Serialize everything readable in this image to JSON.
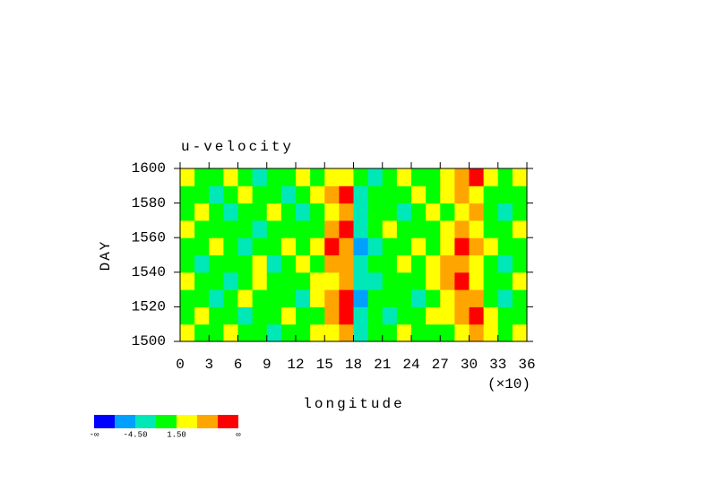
{
  "chart_data": {
    "type": "heatmap",
    "title": "u-velocity",
    "xlabel": "longitude",
    "ylabel": "DAY",
    "x_multiplier": "(×10)",
    "x": [
      0.75,
      2.25,
      3.75,
      5.25,
      6.75,
      8.25,
      9.75,
      11.25,
      12.75,
      14.25,
      15.75,
      17.25,
      18.75,
      20.25,
      21.75,
      23.25,
      24.75,
      26.25,
      27.75,
      29.25,
      30.75,
      32.25,
      33.75,
      35.25
    ],
    "y": [
      1505,
      1515,
      1525,
      1535,
      1545,
      1555,
      1565,
      1575,
      1585,
      1595
    ],
    "z": [
      [
        3,
        0,
        0,
        3,
        0,
        0,
        -3,
        0,
        0,
        3,
        3,
        6,
        -3,
        0,
        0,
        3,
        0,
        0,
        0,
        3,
        6,
        3,
        0,
        3
      ],
      [
        0,
        3,
        0,
        0,
        -3,
        0,
        0,
        3,
        0,
        0,
        6,
        9,
        -3,
        0,
        -3,
        0,
        0,
        3,
        3,
        6,
        9,
        3,
        0,
        0
      ],
      [
        0,
        0,
        -3,
        0,
        3,
        0,
        0,
        0,
        -3,
        3,
        6,
        9,
        -6,
        0,
        0,
        0,
        -3,
        0,
        3,
        6,
        6,
        0,
        -3,
        0
      ],
      [
        3,
        0,
        0,
        -3,
        0,
        3,
        0,
        0,
        0,
        3,
        3,
        6,
        -3,
        -3,
        0,
        0,
        0,
        3,
        6,
        9,
        3,
        0,
        0,
        3
      ],
      [
        0,
        -3,
        0,
        0,
        0,
        3,
        -3,
        0,
        3,
        0,
        6,
        6,
        -3,
        0,
        0,
        3,
        0,
        3,
        6,
        6,
        3,
        0,
        -3,
        0
      ],
      [
        0,
        0,
        3,
        0,
        -3,
        0,
        0,
        3,
        0,
        3,
        9,
        6,
        -6,
        -3,
        0,
        0,
        3,
        0,
        3,
        9,
        6,
        3,
        0,
        0
      ],
      [
        3,
        0,
        0,
        0,
        0,
        -3,
        0,
        0,
        0,
        0,
        6,
        9,
        -3,
        0,
        3,
        0,
        0,
        0,
        3,
        6,
        3,
        0,
        0,
        3
      ],
      [
        0,
        3,
        0,
        -3,
        0,
        0,
        3,
        0,
        -3,
        0,
        3,
        6,
        -3,
        0,
        0,
        -3,
        0,
        3,
        0,
        3,
        6,
        0,
        -3,
        0
      ],
      [
        0,
        0,
        -3,
        0,
        3,
        0,
        0,
        -3,
        0,
        3,
        6,
        9,
        -3,
        0,
        0,
        0,
        3,
        0,
        3,
        6,
        3,
        0,
        0,
        0
      ],
      [
        3,
        0,
        0,
        3,
        0,
        -3,
        0,
        0,
        3,
        0,
        3,
        3,
        0,
        -3,
        0,
        3,
        0,
        0,
        3,
        6,
        9,
        3,
        0,
        3
      ]
    ],
    "xlim": [
      0,
      36
    ],
    "xticks": [
      0,
      3,
      6,
      9,
      12,
      15,
      18,
      21,
      24,
      27,
      30,
      33,
      36
    ],
    "ylim": [
      1500,
      1600
    ],
    "yticks": [
      1500,
      1520,
      1540,
      1560,
      1580,
      1600
    ],
    "colorbar": {
      "levels": [
        -7.5,
        -4.5,
        -1.5,
        1.5,
        4.5,
        7.5
      ],
      "colors": [
        "#0000ff",
        "#00a0ff",
        "#00e8b8",
        "#00ff00",
        "#ffff00",
        "#ffa500",
        "#ff0000"
      ],
      "ticks": [
        {
          "label": "-∞"
        },
        {
          "value": -4.5,
          "label": "-4.50"
        },
        {
          "value": 1.5,
          "label": "1.50"
        },
        {
          "label": "∞"
        }
      ]
    }
  }
}
